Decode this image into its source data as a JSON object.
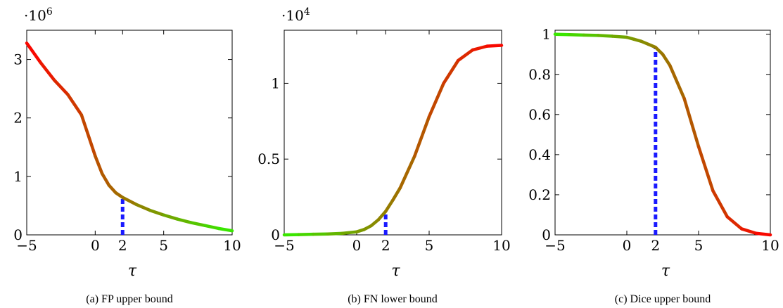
{
  "chart_data": [
    {
      "type": "line",
      "caption": "(a) FP upper bound",
      "xlabel": "τ",
      "ylabel": "",
      "scale_label": "·10",
      "scale_exp": "6",
      "xlim": [
        -5,
        10
      ],
      "ylim": [
        0,
        3.5
      ],
      "xticks": [
        -5,
        0,
        2,
        5,
        10
      ],
      "xtick_labels": [
        "−5",
        "0",
        "2",
        "5",
        "10"
      ],
      "yticks": [
        0,
        1,
        2,
        3
      ],
      "ytick_labels": [
        "0",
        "1",
        "2",
        "3"
      ],
      "x": [
        -5,
        -4,
        -3,
        -2,
        -1,
        0,
        0.5,
        1,
        1.5,
        2,
        3,
        4,
        5,
        6,
        7,
        8,
        9,
        10
      ],
      "y": [
        3.28,
        2.95,
        2.65,
        2.4,
        2.05,
        1.35,
        1.05,
        0.85,
        0.72,
        0.64,
        0.52,
        0.42,
        0.34,
        0.27,
        0.21,
        0.16,
        0.11,
        0.07
      ],
      "threshold_x": 2,
      "threshold_y": 0.64,
      "color_from": "#ff0000",
      "color_to": "#33ee00"
    },
    {
      "type": "line",
      "caption": "(b) FN lower bound",
      "xlabel": "τ",
      "ylabel": "",
      "scale_label": "·10",
      "scale_exp": "4",
      "xlim": [
        -5,
        10
      ],
      "ylim": [
        0,
        1.35
      ],
      "xticks": [
        -5,
        0,
        2,
        5,
        10
      ],
      "xtick_labels": [
        "−5",
        "0",
        "2",
        "5",
        "10"
      ],
      "yticks": [
        0,
        0.5,
        1
      ],
      "ytick_labels": [
        "0",
        "0.5",
        "1"
      ],
      "x": [
        -5,
        -4,
        -3,
        -2,
        -1,
        0,
        0.5,
        1,
        1.5,
        2,
        2.5,
        3,
        4,
        5,
        6,
        7,
        8,
        9,
        10
      ],
      "y": [
        0.0,
        0.002,
        0.004,
        0.006,
        0.01,
        0.02,
        0.035,
        0.06,
        0.1,
        0.155,
        0.23,
        0.31,
        0.52,
        0.78,
        1.0,
        1.15,
        1.22,
        1.245,
        1.25
      ],
      "threshold_x": 2,
      "threshold_y": 0.155,
      "color_from": "#33ee00",
      "color_to": "#ff0000"
    },
    {
      "type": "line",
      "caption": "(c) Dice upper bound",
      "xlabel": "τ",
      "ylabel": "",
      "scale_label": "",
      "scale_exp": "",
      "xlim": [
        -5,
        10
      ],
      "ylim": [
        0,
        1.02
      ],
      "xticks": [
        -5,
        0,
        2,
        5,
        10
      ],
      "xtick_labels": [
        "−5",
        "0",
        "2",
        "5",
        "10"
      ],
      "yticks": [
        0,
        0.2,
        0.4,
        0.6,
        0.8,
        1
      ],
      "ytick_labels": [
        "0",
        "0.2",
        "0.4",
        "0.6",
        "0.8",
        "1"
      ],
      "x": [
        -5,
        -4,
        -3,
        -2,
        -1,
        0,
        0.5,
        1,
        1.5,
        2,
        2.5,
        3,
        4,
        5,
        6,
        7,
        8,
        9,
        10
      ],
      "y": [
        1.0,
        0.998,
        0.996,
        0.994,
        0.99,
        0.985,
        0.975,
        0.965,
        0.95,
        0.935,
        0.9,
        0.845,
        0.68,
        0.44,
        0.22,
        0.09,
        0.03,
        0.008,
        0.0
      ],
      "threshold_x": 2,
      "threshold_y": 0.935,
      "color_from": "#33ee00",
      "color_to": "#ff0000"
    }
  ]
}
